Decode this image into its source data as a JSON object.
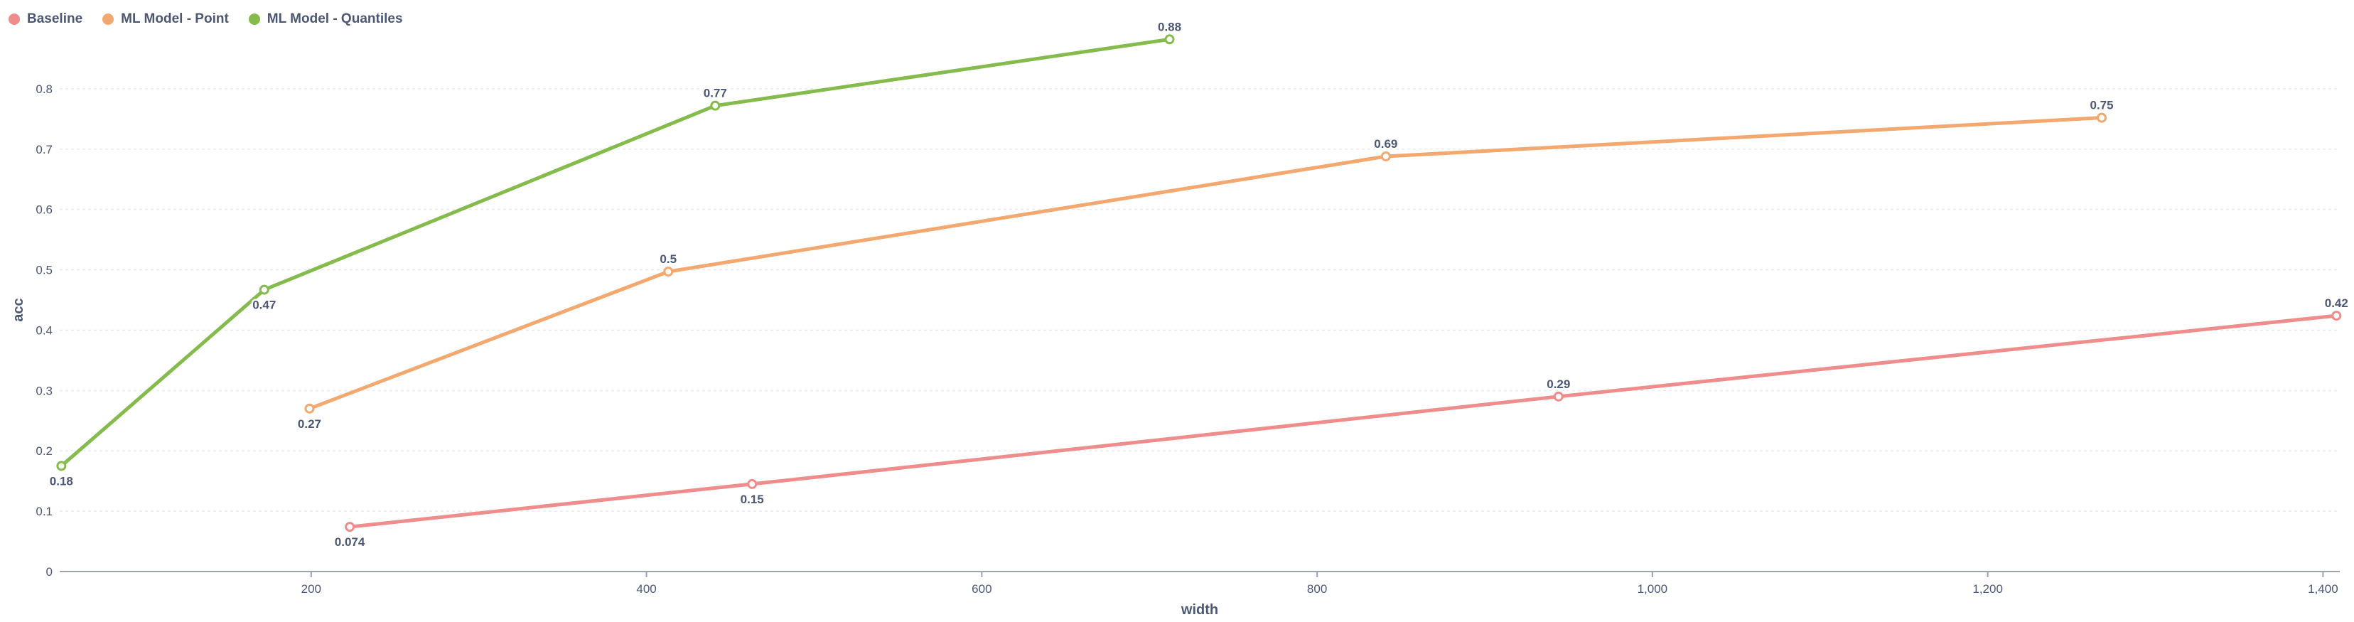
{
  "chart_data": {
    "type": "line",
    "xlabel": "width",
    "ylabel": "acc",
    "xlim": [
      50,
      1410
    ],
    "ylim": [
      0,
      0.9
    ],
    "xticks": [
      200,
      400,
      600,
      800,
      1000,
      1200,
      1400
    ],
    "xtick_labels": [
      "200",
      "400",
      "600",
      "800",
      "1,000",
      "1,200",
      "1,400"
    ],
    "yticks": [
      0,
      0.1,
      0.2,
      0.3,
      0.4,
      0.5,
      0.6,
      0.7,
      0.8
    ],
    "ytick_labels": [
      "0",
      "0.1",
      "0.2",
      "0.3",
      "0.4",
      "0.5",
      "0.6",
      "0.7",
      "0.8"
    ],
    "grid": true,
    "legend_position": "top-left",
    "series": [
      {
        "name": "Baseline",
        "color": "#ef8c8c",
        "points": [
          {
            "x": 223,
            "y": 0.074,
            "label": "0.074",
            "label_pos": "below"
          },
          {
            "x": 463,
            "y": 0.145,
            "label": "0.15",
            "label_pos": "below"
          },
          {
            "x": 944,
            "y": 0.29,
            "label": "0.29",
            "label_pos": "above"
          },
          {
            "x": 1408,
            "y": 0.424,
            "label": "0.42",
            "label_pos": "above"
          }
        ]
      },
      {
        "name": "ML Model - Point",
        "color": "#f2a86f",
        "points": [
          {
            "x": 199,
            "y": 0.27,
            "label": "0.27",
            "label_pos": "below"
          },
          {
            "x": 413,
            "y": 0.497,
            "label": "0.5",
            "label_pos": "above"
          },
          {
            "x": 841,
            "y": 0.688,
            "label": "0.69",
            "label_pos": "above"
          },
          {
            "x": 1268,
            "y": 0.752,
            "label": "0.75",
            "label_pos": "above"
          }
        ]
      },
      {
        "name": "ML Model - Quantiles",
        "color": "#84bb4c",
        "points": [
          {
            "x": 51,
            "y": 0.175,
            "label": "0.18",
            "label_pos": "below"
          },
          {
            "x": 172,
            "y": 0.467,
            "label": "0.47",
            "label_pos": "below"
          },
          {
            "x": 441,
            "y": 0.772,
            "label": "0.77",
            "label_pos": "above"
          },
          {
            "x": 712,
            "y": 0.882,
            "label": "0.88",
            "label_pos": "above"
          }
        ]
      }
    ]
  }
}
